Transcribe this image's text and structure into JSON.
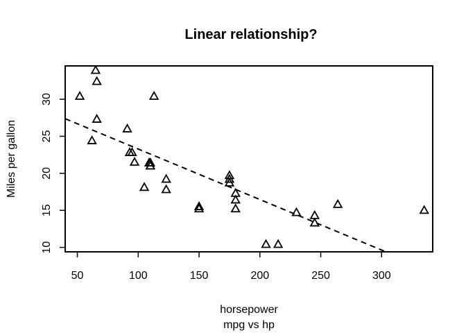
{
  "chart_data": {
    "type": "scatter",
    "title": "Linear relationship?",
    "xlabel": "horsepower",
    "ylabel": "Miles per gallon",
    "subtitle": "mpg vs hp",
    "xlim": [
      40,
      342
    ],
    "ylim": [
      9.4,
      34.5
    ],
    "xticks": [
      50,
      100,
      150,
      200,
      250,
      300
    ],
    "yticks": [
      10,
      15,
      20,
      25,
      30
    ],
    "marker": "open-triangle",
    "points": [
      {
        "x": 110,
        "y": 21.0
      },
      {
        "x": 110,
        "y": 21.0
      },
      {
        "x": 93,
        "y": 22.8
      },
      {
        "x": 110,
        "y": 21.4
      },
      {
        "x": 175,
        "y": 18.7
      },
      {
        "x": 105,
        "y": 18.1
      },
      {
        "x": 245,
        "y": 14.3
      },
      {
        "x": 62,
        "y": 24.4
      },
      {
        "x": 95,
        "y": 22.8
      },
      {
        "x": 123,
        "y": 19.2
      },
      {
        "x": 123,
        "y": 17.8
      },
      {
        "x": 180,
        "y": 16.4
      },
      {
        "x": 180,
        "y": 17.3
      },
      {
        "x": 180,
        "y": 15.2
      },
      {
        "x": 205,
        "y": 10.4
      },
      {
        "x": 215,
        "y": 10.4
      },
      {
        "x": 230,
        "y": 14.7
      },
      {
        "x": 66,
        "y": 32.4
      },
      {
        "x": 52,
        "y": 30.4
      },
      {
        "x": 65,
        "y": 33.9
      },
      {
        "x": 97,
        "y": 21.5
      },
      {
        "x": 150,
        "y": 15.5
      },
      {
        "x": 150,
        "y": 15.2
      },
      {
        "x": 245,
        "y": 13.3
      },
      {
        "x": 175,
        "y": 19.2
      },
      {
        "x": 66,
        "y": 27.3
      },
      {
        "x": 91,
        "y": 26.0
      },
      {
        "x": 113,
        "y": 30.4
      },
      {
        "x": 264,
        "y": 15.8
      },
      {
        "x": 175,
        "y": 19.7
      },
      {
        "x": 335,
        "y": 15.0
      },
      {
        "x": 109,
        "y": 21.4
      }
    ],
    "fit_line": {
      "style": "dashed",
      "intercept": 30.1,
      "slope": -0.0682
    }
  }
}
